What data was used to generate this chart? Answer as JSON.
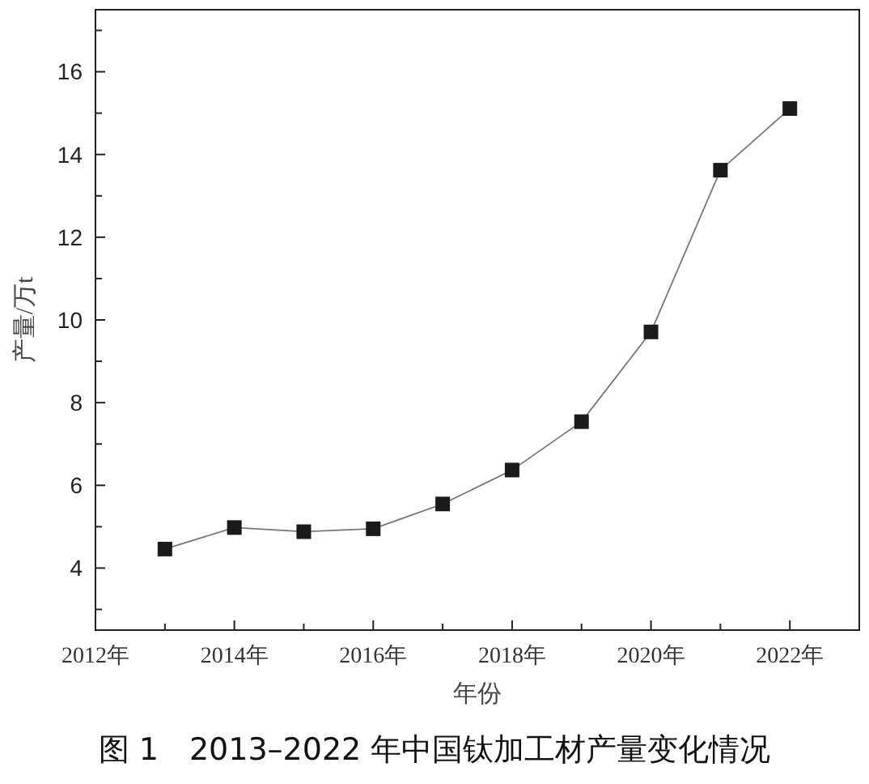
{
  "chart_data": {
    "type": "line",
    "title": "图 1　2013–2022 年中国钛加工材产量变化情况",
    "xlabel": "年份",
    "ylabel": "产量/万t",
    "x": [
      2013,
      2014,
      2015,
      2016,
      2017,
      2018,
      2019,
      2020,
      2021,
      2022
    ],
    "series": [
      {
        "color": "#1a1a1a",
        "values": [
          4.46,
          4.98,
          4.88,
          4.95,
          5.55,
          6.37,
          7.54,
          9.71,
          13.62,
          15.11
        ]
      }
    ],
    "xlim": [
      2012,
      2023
    ],
    "xticks": [
      {
        "value": 2012,
        "label": "2012年"
      },
      {
        "value": 2013,
        "label": null
      },
      {
        "value": 2014,
        "label": "2014年"
      },
      {
        "value": 2015,
        "label": null
      },
      {
        "value": 2016,
        "label": "2016年"
      },
      {
        "value": 2017,
        "label": null
      },
      {
        "value": 2018,
        "label": "2018年"
      },
      {
        "value": 2019,
        "label": null
      },
      {
        "value": 2020,
        "label": "2020年"
      },
      {
        "value": 2021,
        "label": null
      },
      {
        "value": 2022,
        "label": "2022年"
      },
      {
        "value": 2023,
        "label": null
      }
    ],
    "ylim": [
      2.5,
      17.5
    ],
    "yticks": [
      {
        "value": 3,
        "label": null
      },
      4,
      {
        "value": 5,
        "label": null
      },
      6,
      {
        "value": 7,
        "label": null
      },
      8,
      {
        "value": 9,
        "label": null
      },
      10,
      {
        "value": 11,
        "label": null
      },
      12,
      {
        "value": 13,
        "label": null
      },
      14,
      {
        "value": 15,
        "label": null
      },
      16,
      {
        "value": 17,
        "label": null
      }
    ],
    "marker": "square",
    "line_style": "solid"
  }
}
